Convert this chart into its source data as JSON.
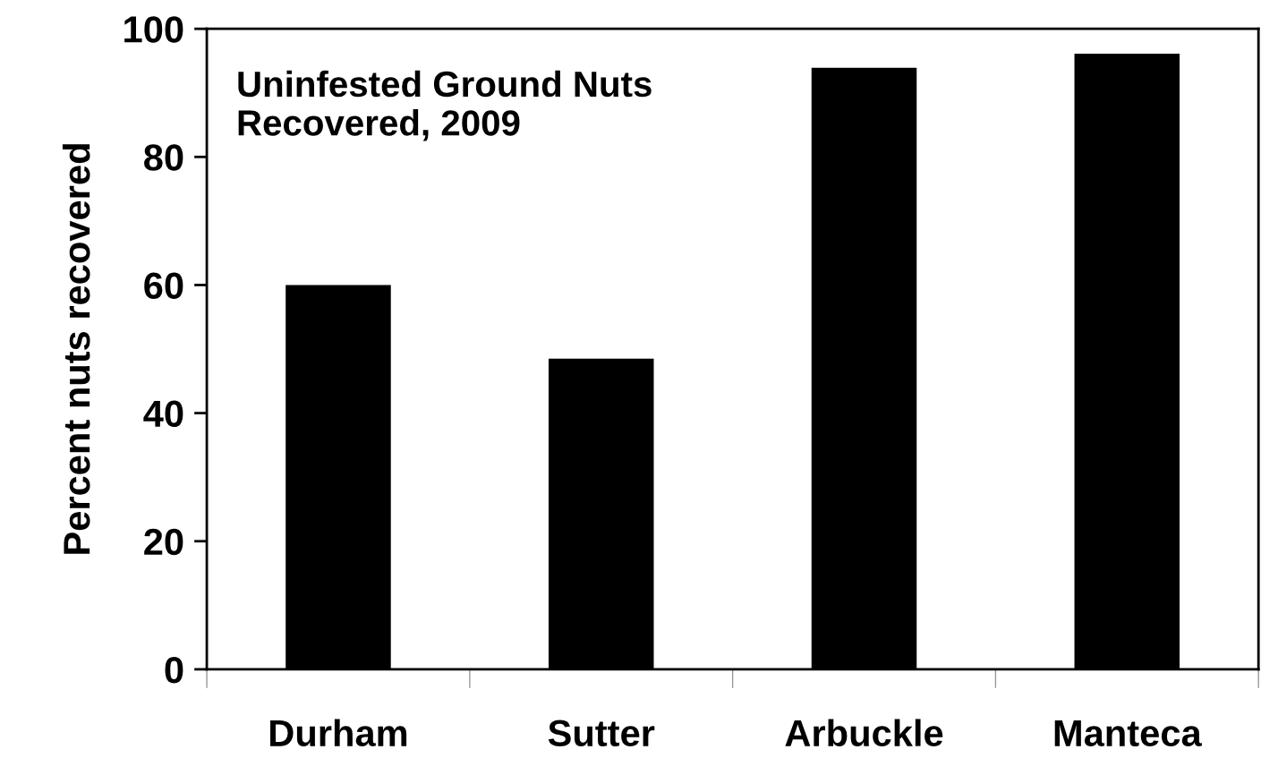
{
  "chart_data": {
    "type": "bar",
    "title": "Uninfested Ground Nuts\nRecovered, 2009",
    "ylabel": "Percent nuts recovered",
    "categories": [
      "Durham",
      "Sutter",
      "Arbuckle",
      "Manteca"
    ],
    "values": [
      60.0,
      48.5,
      93.9,
      96.1
    ],
    "color": "#000000",
    "ylim": [
      0,
      100
    ],
    "yticks": [
      0,
      20,
      40,
      60,
      80,
      100
    ],
    "grid": false,
    "legend": false
  }
}
